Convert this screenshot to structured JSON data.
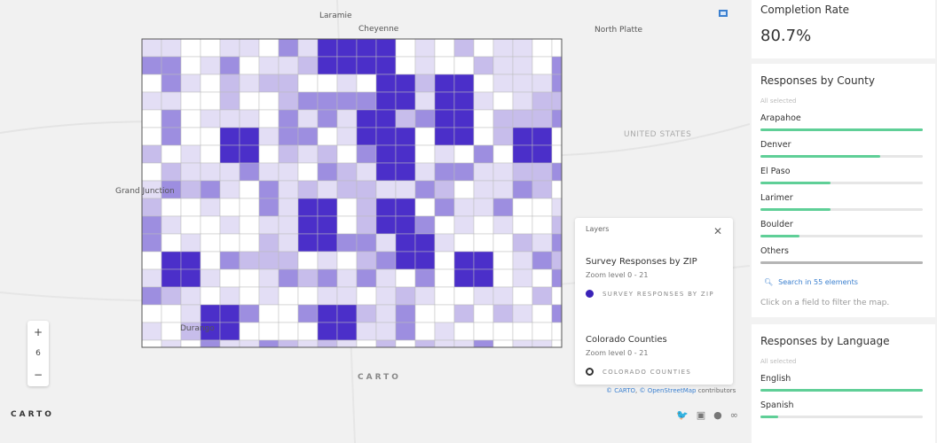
{
  "map": {
    "cities": [
      "Laramie",
      "Cheyenne",
      "North Platte",
      "Grand Junction",
      "Durango"
    ],
    "country_label": "UNITED STATES",
    "zoom_level": "6",
    "zoom_in": "+",
    "zoom_out": "−",
    "logo": "CARTO",
    "watermark": "CARTO",
    "fill_color": "#4b2fc9",
    "attribution": {
      "carto": "© CARTO",
      "osm": "© OpenStreetMap",
      "suffix": "contributors"
    },
    "social_icons": [
      "twitter-icon",
      "linkedin-icon",
      "facebook-icon",
      "link-icon"
    ]
  },
  "layers": {
    "title": "Layers",
    "items": [
      {
        "name": "Survey Responses by ZIP",
        "zoom": "Zoom level 0 - 21",
        "legend": "SURVEY RESPONSES BY ZIP",
        "color": "#3a22b8"
      },
      {
        "name": "Colorado Counties",
        "zoom": "Zoom level 0 - 21",
        "legend": "COLORADO COUNTIES"
      }
    ]
  },
  "completion": {
    "title": "Completion Rate",
    "value": "80.7%"
  },
  "county": {
    "title": "Responses by County",
    "selected": "All selected",
    "items": [
      {
        "label": "Arapahoe",
        "pct": 100
      },
      {
        "label": "Denver",
        "pct": 74
      },
      {
        "label": "El Paso",
        "pct": 43
      },
      {
        "label": "Larimer",
        "pct": 43
      },
      {
        "label": "Boulder",
        "pct": 24
      },
      {
        "label": "Others",
        "pct": 100
      }
    ],
    "search": "Search in 55 elements",
    "hint": "Click on a field to filter the map."
  },
  "language": {
    "title": "Responses by Language",
    "selected": "All selected",
    "items": [
      {
        "label": "English",
        "pct": 100
      },
      {
        "label": "Spanish",
        "pct": 11
      }
    ]
  },
  "colors": {
    "bar": "#5fcf97",
    "others_bar": "#b5b5b5"
  }
}
